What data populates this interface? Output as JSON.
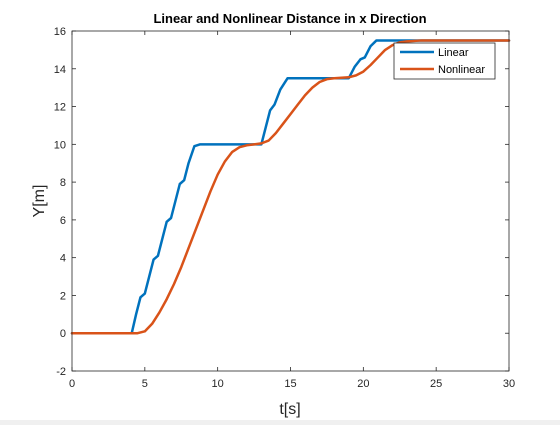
{
  "chart_data": {
    "type": "line",
    "title": "Linear and Nonlinear Distance in x Direction",
    "xlabel": "t[s]",
    "ylabel": "Y[m]",
    "xlim": [
      0,
      30
    ],
    "ylim": [
      -2,
      16
    ],
    "xticks": [
      0,
      5,
      10,
      15,
      20,
      25,
      30
    ],
    "yticks": [
      -2,
      0,
      2,
      4,
      6,
      8,
      10,
      12,
      14,
      16
    ],
    "grid": false,
    "legend_position": "top-right",
    "series": [
      {
        "name": "Linear",
        "color": "#0072BD",
        "points": [
          [
            0,
            0
          ],
          [
            4.1,
            0
          ],
          [
            4.4,
            1.0
          ],
          [
            4.7,
            1.9
          ],
          [
            5.0,
            2.1
          ],
          [
            5.3,
            3.0
          ],
          [
            5.6,
            3.9
          ],
          [
            5.9,
            4.1
          ],
          [
            6.2,
            5.0
          ],
          [
            6.5,
            5.9
          ],
          [
            6.8,
            6.1
          ],
          [
            7.1,
            7.0
          ],
          [
            7.4,
            7.9
          ],
          [
            7.7,
            8.1
          ],
          [
            8.0,
            9.0
          ],
          [
            8.4,
            9.9
          ],
          [
            8.8,
            10.0
          ],
          [
            13.0,
            10.0
          ],
          [
            13.3,
            10.9
          ],
          [
            13.6,
            11.8
          ],
          [
            13.9,
            12.1
          ],
          [
            14.3,
            12.9
          ],
          [
            14.8,
            13.5
          ],
          [
            19.0,
            13.5
          ],
          [
            19.4,
            14.1
          ],
          [
            19.8,
            14.5
          ],
          [
            20.1,
            14.6
          ],
          [
            20.5,
            15.2
          ],
          [
            20.9,
            15.5
          ],
          [
            30,
            15.5
          ]
        ]
      },
      {
        "name": "Nonlinear",
        "color": "#D95319",
        "points": [
          [
            0,
            0
          ],
          [
            4.5,
            0
          ],
          [
            5.0,
            0.1
          ],
          [
            5.5,
            0.5
          ],
          [
            6.0,
            1.1
          ],
          [
            6.5,
            1.8
          ],
          [
            7.0,
            2.6
          ],
          [
            7.5,
            3.5
          ],
          [
            8.0,
            4.5
          ],
          [
            8.5,
            5.5
          ],
          [
            9.0,
            6.5
          ],
          [
            9.5,
            7.5
          ],
          [
            10.0,
            8.4
          ],
          [
            10.5,
            9.1
          ],
          [
            11.0,
            9.6
          ],
          [
            11.5,
            9.85
          ],
          [
            12.0,
            9.95
          ],
          [
            12.5,
            10.0
          ],
          [
            13.0,
            10.05
          ],
          [
            13.5,
            10.2
          ],
          [
            14.0,
            10.6
          ],
          [
            14.5,
            11.1
          ],
          [
            15.0,
            11.6
          ],
          [
            15.5,
            12.1
          ],
          [
            16.0,
            12.6
          ],
          [
            16.5,
            13.0
          ],
          [
            17.0,
            13.3
          ],
          [
            17.5,
            13.45
          ],
          [
            18.0,
            13.5
          ],
          [
            19.0,
            13.55
          ],
          [
            19.5,
            13.65
          ],
          [
            20.0,
            13.85
          ],
          [
            20.5,
            14.2
          ],
          [
            21.0,
            14.6
          ],
          [
            21.5,
            15.0
          ],
          [
            22.0,
            15.25
          ],
          [
            22.5,
            15.4
          ],
          [
            23.0,
            15.45
          ],
          [
            24.0,
            15.5
          ],
          [
            30,
            15.5
          ]
        ]
      }
    ]
  }
}
